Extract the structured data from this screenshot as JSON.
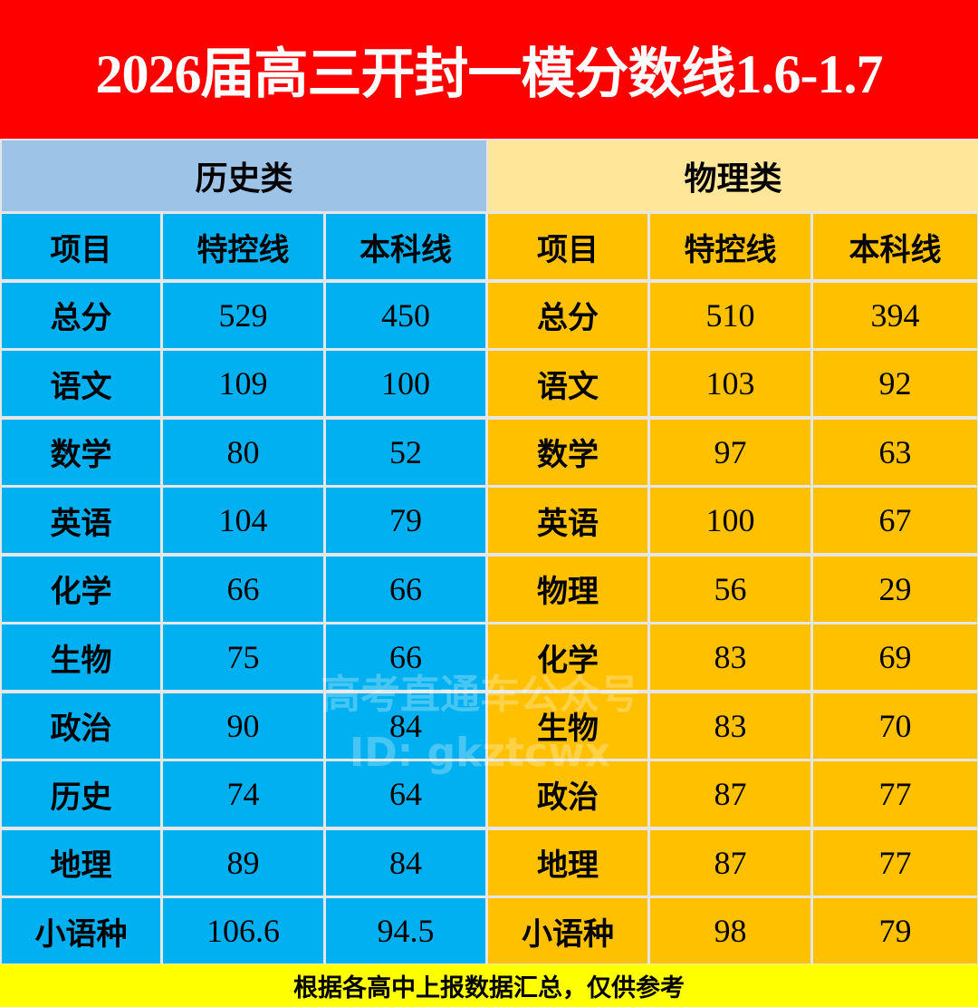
{
  "title": "2026届高三开封一模分数线1.6-1.7",
  "categories": {
    "history": "历史类",
    "physics": "物理类"
  },
  "headers": [
    "项目",
    "特控线",
    "本科线",
    "项目",
    "特控线",
    "本科线"
  ],
  "rows": [
    [
      "总分",
      "529",
      "450",
      "总分",
      "510",
      "394"
    ],
    [
      "语文",
      "109",
      "100",
      "语文",
      "103",
      "92"
    ],
    [
      "数学",
      "80",
      "52",
      "数学",
      "97",
      "63"
    ],
    [
      "英语",
      "104",
      "79",
      "英语",
      "100",
      "67"
    ],
    [
      "化学",
      "66",
      "66",
      "物理",
      "56",
      "29"
    ],
    [
      "生物",
      "75",
      "66",
      "化学",
      "83",
      "69"
    ],
    [
      "政治",
      "90",
      "84",
      "生物",
      "83",
      "70"
    ],
    [
      "历史",
      "74",
      "64",
      "政治",
      "87",
      "77"
    ],
    [
      "地理",
      "89",
      "84",
      "地理",
      "87",
      "77"
    ],
    [
      "小语种",
      "106.6",
      "94.5",
      "小语种",
      "98",
      "79"
    ]
  ],
  "footer": "根据各高中上报数据汇总，仅供参考",
  "watermark": {
    "line1": "高考直通车公众号",
    "line2": "ID: gkztcwx"
  },
  "colors": {
    "title_bg": "#ff0000",
    "history_header": "#9dc3e6",
    "physics_header": "#ffe699",
    "history_cells": "#00b0f0",
    "physics_cells": "#ffc000",
    "footer_bg": "#ffff00"
  }
}
